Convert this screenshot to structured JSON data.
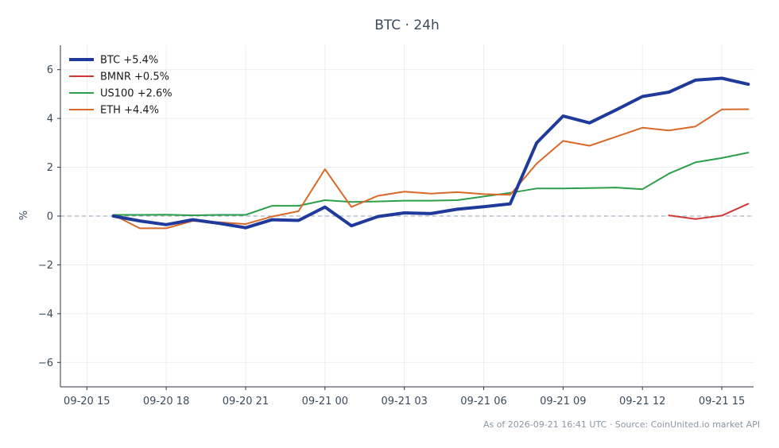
{
  "chart_data": {
    "type": "line",
    "title": "BTC · 24h",
    "ylabel": "%",
    "xlabel": "",
    "ylim": [
      -7,
      7
    ],
    "yticks": [
      6,
      4,
      2,
      0,
      -2,
      -4,
      -6
    ],
    "ytick_labels": [
      "6",
      "4",
      "2",
      "0",
      "−2",
      "−4",
      "−6"
    ],
    "xlim": [
      -1,
      25.2
    ],
    "xticks": [
      0,
      3,
      6,
      9,
      12,
      15,
      18,
      21,
      24
    ],
    "xtick_labels": [
      "09-20 15",
      "09-20 18",
      "09-20 21",
      "09-21 00",
      "09-21 03",
      "09-21 06",
      "09-21 09",
      "09-21 12",
      "09-21 15"
    ],
    "x_unit_note_hidden": "",
    "grid": true,
    "zero_line": true,
    "legend_position": "top-left",
    "series": [
      {
        "name": "BTC +5.4%",
        "color": "#1f3a9a",
        "width": 4,
        "x": [
          1,
          2,
          3,
          4,
          5,
          6,
          7,
          8,
          9,
          10,
          11,
          12,
          13,
          14,
          15,
          16,
          17,
          18,
          19,
          20,
          21,
          22,
          23,
          24,
          25
        ],
        "values": [
          0.0,
          -0.2,
          -0.35,
          -0.15,
          -0.3,
          -0.48,
          -0.15,
          -0.18,
          0.37,
          -0.4,
          -0.02,
          0.13,
          0.1,
          0.28,
          0.38,
          0.5,
          3.0,
          4.1,
          3.82,
          4.35,
          4.9,
          5.08,
          5.57,
          5.65,
          5.4
        ]
      },
      {
        "name": "BMNR +0.5%",
        "color": "#d03a35",
        "width": 2,
        "x": [
          22,
          23,
          24,
          25
        ],
        "values": [
          0.03,
          -0.12,
          0.02,
          0.5
        ]
      },
      {
        "name": "US100 +2.6%",
        "color": "#2e9e4a",
        "width": 2,
        "x": [
          1,
          2,
          3,
          4,
          5,
          6,
          7,
          8,
          9,
          10,
          11,
          12,
          13,
          14,
          15,
          16,
          17,
          18,
          19,
          20,
          21,
          22,
          23,
          24,
          25
        ],
        "values": [
          0.05,
          0.05,
          0.06,
          0.03,
          0.05,
          0.05,
          0.42,
          0.42,
          0.65,
          0.58,
          0.6,
          0.63,
          0.63,
          0.65,
          0.8,
          0.95,
          1.13,
          1.13,
          1.15,
          1.17,
          1.1,
          1.74,
          2.2,
          2.38,
          2.6
        ]
      },
      {
        "name": "ETH +4.4%",
        "color": "#d8692a",
        "width": 2,
        "x": [
          1,
          2,
          3,
          4,
          5,
          6,
          7,
          8,
          9,
          10,
          11,
          12,
          13,
          14,
          15,
          16,
          17,
          18,
          19,
          20,
          21,
          22,
          23,
          24,
          25
        ],
        "values": [
          0.05,
          -0.5,
          -0.5,
          -0.2,
          -0.25,
          -0.33,
          -0.02,
          0.2,
          1.92,
          0.37,
          0.83,
          1.0,
          0.92,
          0.98,
          0.9,
          0.87,
          2.15,
          3.08,
          2.88,
          3.25,
          3.62,
          3.51,
          3.67,
          4.37,
          4.38
        ]
      }
    ],
    "footer": "As of 2026-09-21 16:41 UTC · Source: CoinUnited.io market API"
  }
}
